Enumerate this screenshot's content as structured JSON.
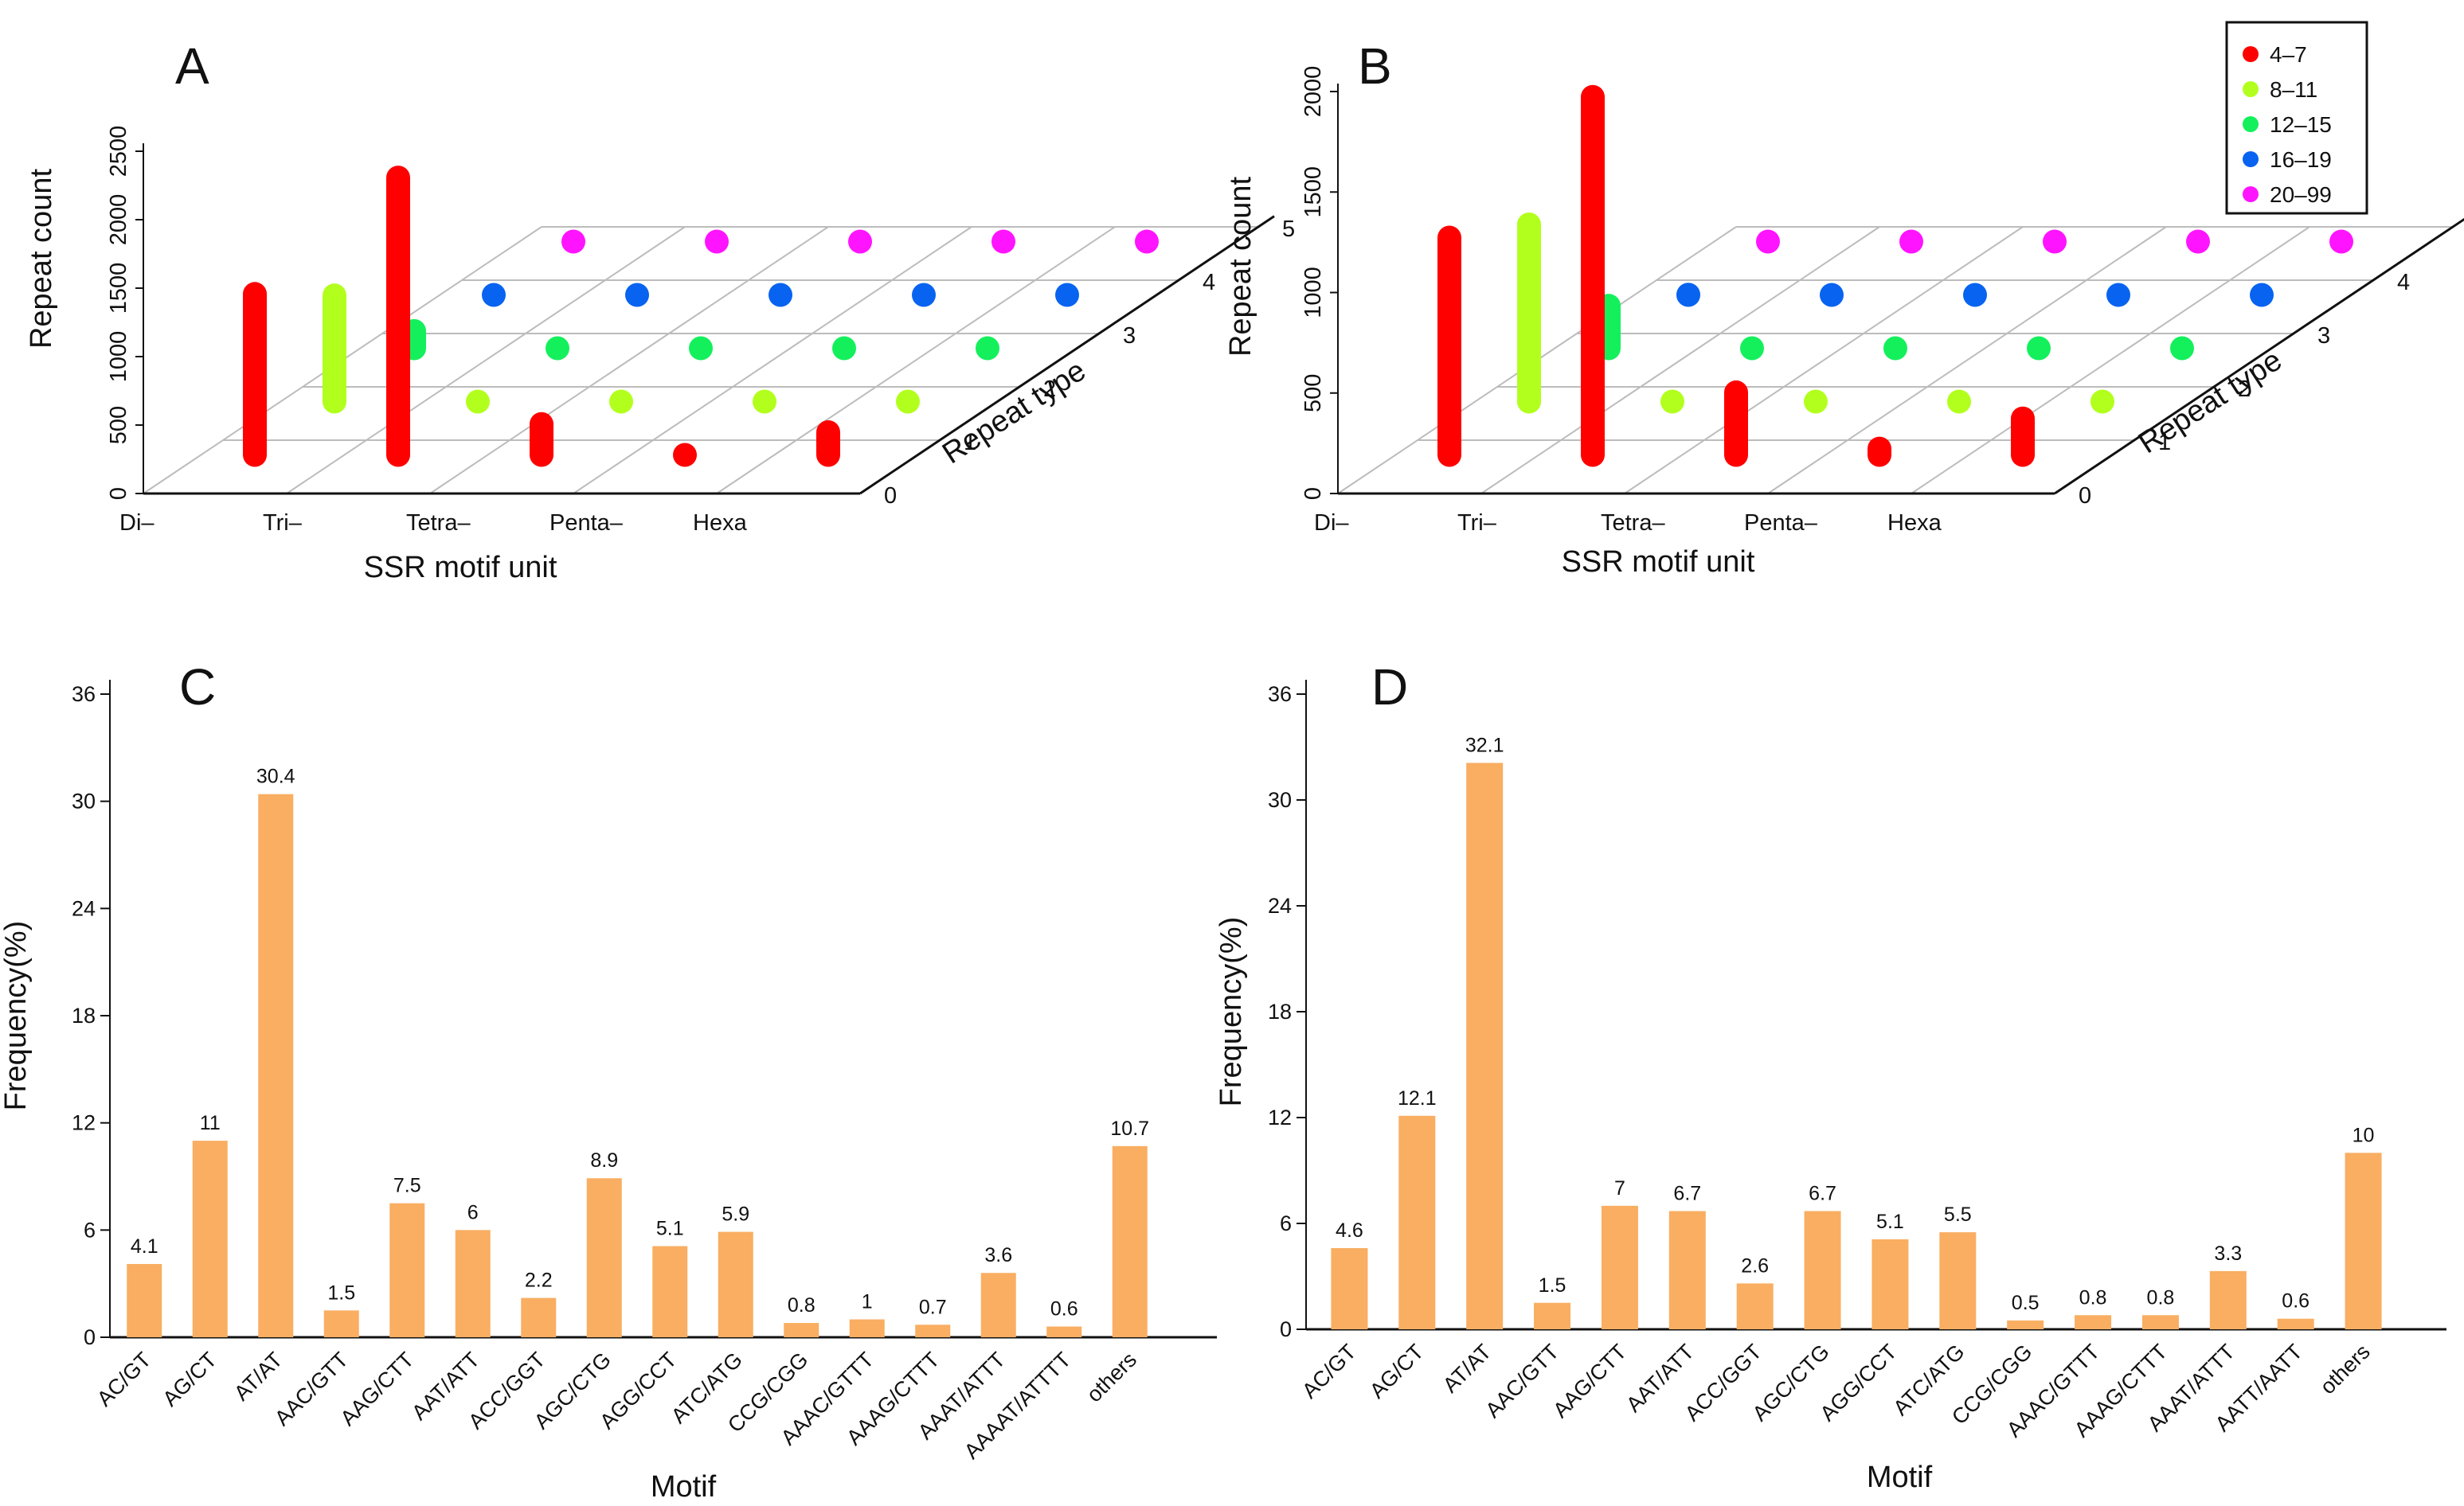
{
  "colors": {
    "bar": "#f9ae62",
    "range_4_7": "#ff0000",
    "range_8_11": "#b2ff1e",
    "range_12_15": "#14f05c",
    "range_16_19": "#0863f0",
    "range_20_99": "#ff14ff"
  },
  "legend": {
    "entries": [
      {
        "label": "4–7",
        "color_key": "range_4_7"
      },
      {
        "label": "8–11",
        "color_key": "range_8_11"
      },
      {
        "label": "12–15",
        "color_key": "range_12_15"
      },
      {
        "label": "16–19",
        "color_key": "range_16_19"
      },
      {
        "label": "20–99",
        "color_key": "range_20_99"
      }
    ]
  },
  "chart_data": [
    {
      "id": "A",
      "type": "bar3d",
      "panel_label": "A",
      "xlabel": "SSR motif unit",
      "ylabel": "Repeat count",
      "zlabel": "Repeat type",
      "x_categories": [
        "Di–",
        "Tri–",
        "Tetra–",
        "Penta–",
        "Hexa"
      ],
      "z_ticks": [
        "0",
        "1",
        "2",
        "3",
        "4",
        "5"
      ],
      "y_ticks": [
        "0",
        "500",
        "1000",
        "1500",
        "2000",
        "2500"
      ],
      "ylim": [
        0,
        2500
      ],
      "series": [
        {
          "name": "4–7",
          "color_key": "range_4_7",
          "values": [
            1350,
            2200,
            400,
            130,
            340
          ]
        },
        {
          "name": "8–11",
          "color_key": "range_8_11",
          "values": [
            950,
            60,
            0,
            0,
            0
          ]
        },
        {
          "name": "12–15",
          "color_key": "range_12_15",
          "values": [
            300,
            0,
            0,
            0,
            0
          ]
        },
        {
          "name": "16–19",
          "color_key": "range_16_19",
          "values": [
            120,
            0,
            0,
            0,
            0
          ]
        },
        {
          "name": "20–99",
          "color_key": "range_20_99",
          "values": [
            60,
            0,
            0,
            0,
            0
          ]
        }
      ]
    },
    {
      "id": "B",
      "type": "bar3d",
      "panel_label": "B",
      "xlabel": "SSR motif unit",
      "ylabel": "Repeat count",
      "zlabel": "Repeat type",
      "x_categories": [
        "Di–",
        "Tri–",
        "Tetra–",
        "Penta–",
        "Hexa"
      ],
      "z_ticks": [
        "0",
        "1",
        "2",
        "3",
        "4",
        "5"
      ],
      "y_ticks": [
        "0",
        "500",
        "1000",
        "1500",
        "2000"
      ],
      "ylim": [
        0,
        2000
      ],
      "series": [
        {
          "name": "4–7",
          "color_key": "range_4_7",
          "values": [
            1200,
            1900,
            430,
            150,
            300
          ]
        },
        {
          "name": "8–11",
          "color_key": "range_8_11",
          "values": [
            1000,
            90,
            0,
            0,
            0
          ]
        },
        {
          "name": "12–15",
          "color_key": "range_12_15",
          "values": [
            330,
            0,
            0,
            0,
            0
          ]
        },
        {
          "name": "16–19",
          "color_key": "range_16_19",
          "values": [
            120,
            0,
            0,
            0,
            0
          ]
        },
        {
          "name": "20–99",
          "color_key": "range_20_99",
          "values": [
            80,
            0,
            0,
            0,
            0
          ]
        }
      ]
    },
    {
      "id": "C",
      "type": "bar",
      "panel_label": "C",
      "xlabel": "Motif",
      "ylabel": "Frequency(%)",
      "ylim": [
        0,
        36
      ],
      "y_ticks": [
        "0",
        "6",
        "12",
        "18",
        "24",
        "30",
        "36"
      ],
      "categories": [
        "AC/GT",
        "AG/CT",
        "AT/AT",
        "AAC/GTT",
        "AAG/CTT",
        "AAT/ATT",
        "ACC/GGT",
        "AGC/CTG",
        "AGG/CCT",
        "ATC/ATG",
        "CCG/CGG",
        "AAAC/GTTT",
        "AAAG/CTTT",
        "AAAT/ATTT",
        "AAAAT/ATTTT",
        "others"
      ],
      "values": [
        4.1,
        11,
        30.4,
        1.5,
        7.5,
        6,
        2.2,
        8.9,
        5.1,
        5.9,
        0.8,
        1,
        0.7,
        3.6,
        0.6,
        10.7
      ],
      "value_labels": [
        "4.1",
        "11",
        "30.4",
        "1.5",
        "7.5",
        "6",
        "2.2",
        "8.9",
        "5.1",
        "5.9",
        "0.8",
        "1",
        "0.7",
        "3.6",
        "0.6",
        "10.7"
      ]
    },
    {
      "id": "D",
      "type": "bar",
      "panel_label": "D",
      "xlabel": "Motif",
      "ylabel": "Frequency(%)",
      "ylim": [
        0,
        36
      ],
      "y_ticks": [
        "0",
        "6",
        "12",
        "18",
        "24",
        "30",
        "36"
      ],
      "categories": [
        "AC/GT",
        "AG/CT",
        "AT/AT",
        "AAC/GTT",
        "AAG/CTT",
        "AAT/ATT",
        "ACC/GGT",
        "AGC/CTG",
        "AGG/CCT",
        "ATC/ATG",
        "CCG/CGG",
        "AAAC/GTTT",
        "AAAG/CTTT",
        "AAAT/ATTT",
        "AATT/AATT",
        "others"
      ],
      "values": [
        4.6,
        12.1,
        32.1,
        1.5,
        7,
        6.7,
        2.6,
        6.7,
        5.1,
        5.5,
        0.5,
        0.8,
        0.8,
        3.3,
        0.6,
        10
      ],
      "value_labels": [
        "4.6",
        "12.1",
        "32.1",
        "1.5",
        "7",
        "6.7",
        "2.6",
        "6.7",
        "5.1",
        "5.5",
        "0.5",
        "0.8",
        "0.8",
        "3.3",
        "0.6",
        "10"
      ]
    }
  ]
}
